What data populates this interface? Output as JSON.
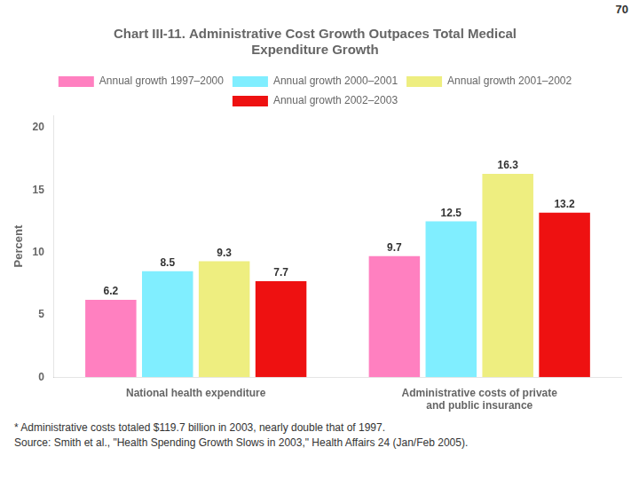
{
  "chart_data": {
    "type": "bar",
    "title": [
      "Chart III-11. Administrative Cost Growth Outpaces Total Medical",
      "Expenditure Growth"
    ],
    "ylabel": "Percent",
    "categories": [
      "National health expenditure",
      "Administrative costs of private\nand public insurance"
    ],
    "series": [
      {
        "name": "Annual growth 1997–2000",
        "color": "#FF80C0",
        "values": [
          6.2,
          9.7
        ]
      },
      {
        "name": "Annual growth 2000–2001",
        "color": "#80EEFF",
        "values": [
          8.5,
          12.5
        ]
      },
      {
        "name": "Annual growth 2001–2002",
        "color": "#EEEE80",
        "values": [
          9.3,
          16.3
        ]
      },
      {
        "name": "Annual growth 2002–2003",
        "color": "#EE1111",
        "values": [
          7.7,
          13.2
        ]
      }
    ],
    "ylim": [
      0,
      21
    ],
    "yticks": [
      0,
      5,
      10,
      15,
      20
    ],
    "grid": false,
    "legend": "top",
    "data_labels": true,
    "annotations": [
      "70",
      "* Administrative costs totaled $119.7 billion in 2003, nearly double that of 1997.",
      "Source: Smith et al., \"Health Spending Growth Slows in 2003,\" Health Affairs 24 (Jan/Feb 2005)."
    ]
  }
}
